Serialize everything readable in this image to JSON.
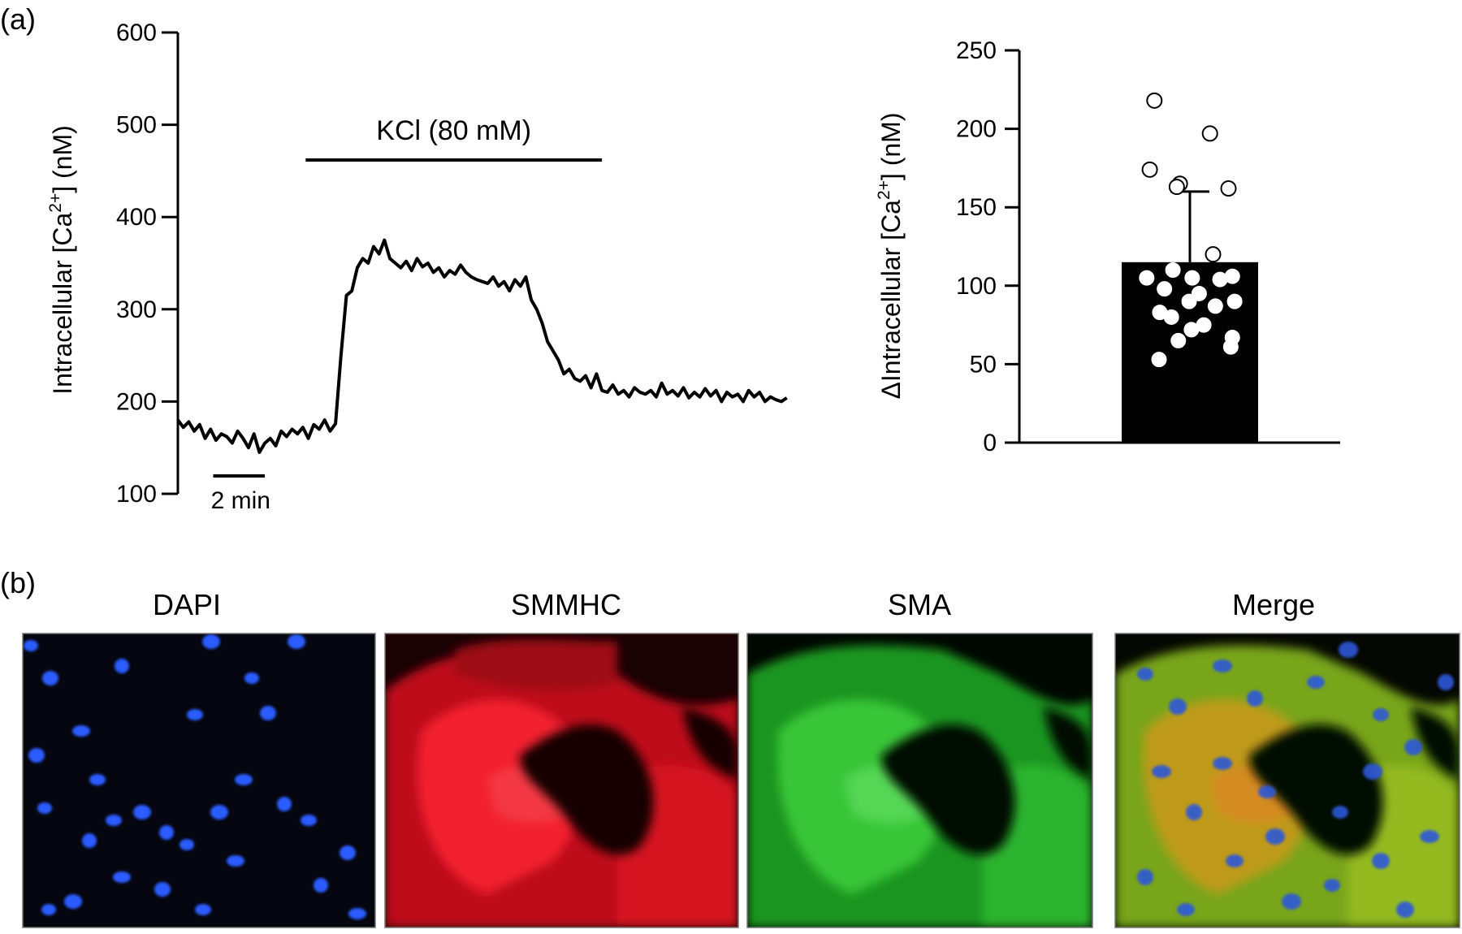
{
  "panel_labels": {
    "a": "(a)",
    "b": "(b)"
  },
  "chart_data": [
    {
      "type": "line",
      "xlabel": "",
      "ylabel": "Intracellular [Ca2+] (nM)",
      "ylabel_parts": {
        "pre": "Intracellular [Ca",
        "sup": "2+",
        "post": "] (nM)"
      },
      "ylim": [
        100,
        600
      ],
      "yticks": [
        100,
        200,
        300,
        400,
        500,
        600
      ],
      "xlim": [
        0,
        22.5
      ],
      "grid": false,
      "annotations": {
        "stimulus": "KCl (80 mM)",
        "stimulus_x": [
          4.7,
          15.6
        ],
        "scale_bar": "2 min",
        "scale_bar_x": [
          1.3,
          3.2
        ]
      },
      "series": [
        {
          "x": [
            0.0,
            0.2,
            0.4,
            0.6,
            0.8,
            1.0,
            1.2,
            1.4,
            1.6,
            1.8,
            2.0,
            2.2,
            2.4,
            2.6,
            2.8,
            3.0,
            3.2,
            3.4,
            3.6,
            3.8,
            4.0,
            4.2,
            4.4,
            4.6,
            4.8,
            5.0,
            5.2,
            5.4,
            5.6,
            5.8,
            6.0,
            6.2,
            6.4,
            6.6,
            6.8,
            7.0,
            7.2,
            7.4,
            7.6,
            7.8,
            8.0,
            8.2,
            8.4,
            8.6,
            8.8,
            9.0,
            9.2,
            9.4,
            9.6,
            9.8,
            10.0,
            10.2,
            10.4,
            10.6,
            10.8,
            11.0,
            11.2,
            11.4,
            11.6,
            11.8,
            12.0,
            12.2,
            12.4,
            12.6,
            12.8,
            13.0,
            13.2,
            13.4,
            13.6,
            13.8,
            14.0,
            14.2,
            14.4,
            14.6,
            14.8,
            15.0,
            15.2,
            15.4,
            15.6,
            15.8,
            16.0,
            16.2,
            16.4,
            16.6,
            16.8,
            17.0,
            17.2,
            17.4,
            17.6,
            17.8,
            18.0,
            18.2,
            18.4,
            18.6,
            18.8,
            19.0,
            19.2,
            19.4,
            19.6,
            19.8,
            20.0,
            20.2,
            20.4,
            20.6,
            20.8,
            21.0,
            21.2,
            21.4,
            21.6,
            21.8,
            22.0,
            22.2,
            22.4
          ],
          "y": [
            180,
            172,
            178,
            168,
            175,
            160,
            170,
            158,
            165,
            162,
            155,
            168,
            160,
            150,
            165,
            145,
            155,
            160,
            152,
            168,
            162,
            170,
            165,
            172,
            160,
            175,
            170,
            180,
            168,
            176,
            250,
            315,
            320,
            345,
            355,
            350,
            368,
            360,
            375,
            355,
            350,
            345,
            352,
            342,
            355,
            346,
            350,
            340,
            345,
            335,
            342,
            338,
            348,
            340,
            335,
            332,
            330,
            328,
            335,
            325,
            330,
            320,
            332,
            325,
            335,
            310,
            300,
            285,
            265,
            255,
            245,
            230,
            235,
            225,
            222,
            228,
            215,
            230,
            212,
            210,
            218,
            208,
            212,
            205,
            215,
            210,
            208,
            212,
            205,
            220,
            208,
            212,
            206,
            215,
            204,
            210,
            205,
            214,
            206,
            212,
            200,
            210,
            205,
            208,
            200,
            212,
            205,
            210,
            200,
            205,
            202,
            200,
            204
          ]
        }
      ]
    },
    {
      "type": "bar",
      "xlabel": "",
      "ylabel": "ΔIntracellular [Ca2+] (nM)",
      "ylabel_parts": {
        "pre": "ΔIntracellular [Ca",
        "sup": "2+",
        "post": "] (nM)"
      },
      "ylim": [
        0,
        250
      ],
      "yticks": [
        0,
        50,
        100,
        150,
        200,
        250
      ],
      "grid": false,
      "categories": [
        ""
      ],
      "values": [
        115
      ],
      "error": [
        45
      ],
      "points": [
        218,
        197,
        174,
        165,
        162,
        163,
        120,
        110,
        105,
        106,
        105,
        104,
        98,
        95,
        90,
        90,
        87,
        83,
        80,
        75,
        72,
        67,
        65,
        61,
        53
      ]
    }
  ],
  "micrographs": [
    {
      "title": "DAPI"
    },
    {
      "title": "SMMHC"
    },
    {
      "title": "SMA"
    },
    {
      "title": "Merge"
    }
  ],
  "colors": {
    "line": "#000000",
    "bar": "#000000",
    "dapi": "#2a5cff",
    "smmhc": "#ff1a2a",
    "sma": "#3bd13b",
    "background_micro": "#05060a"
  }
}
